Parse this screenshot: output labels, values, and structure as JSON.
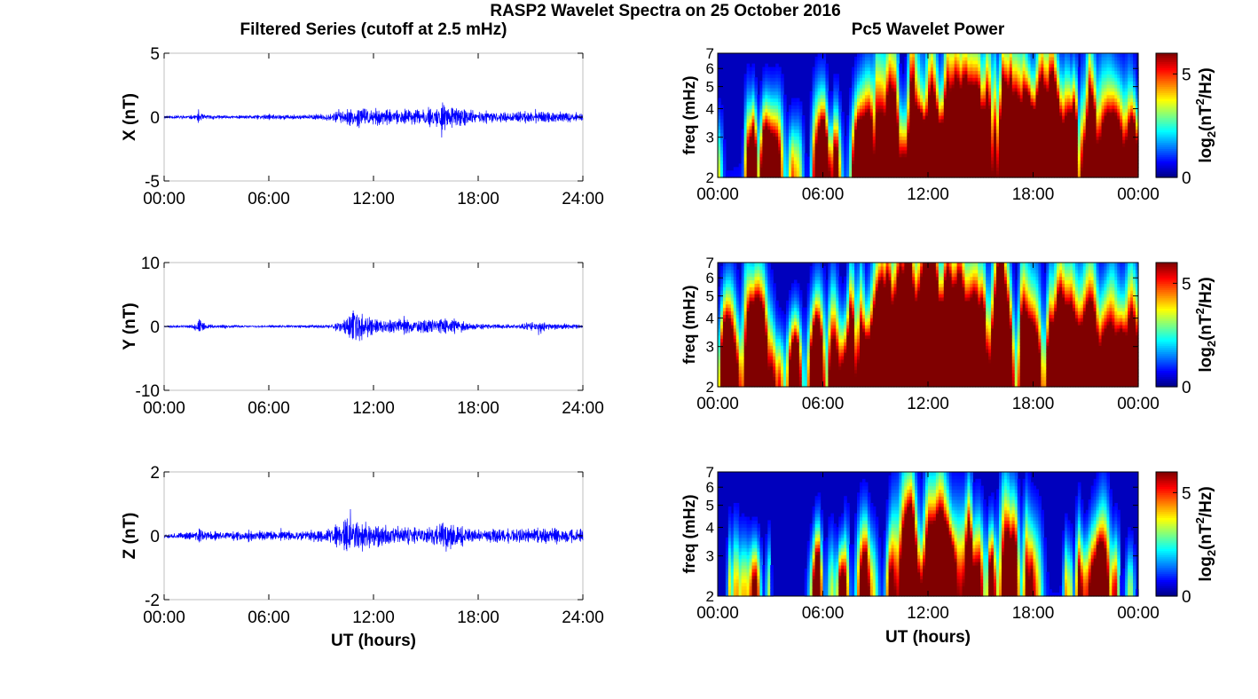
{
  "figure": {
    "suptitle": "RASP2 Wavelet Spectra on 25 October 2016",
    "left_title": "Filtered Series (cutoff at 2.5 mHz)",
    "right_title": "Pc5 Wavelet Power",
    "xlabel": "UT (hours)"
  },
  "colors": {
    "trace": "#0000ff",
    "axis": "#000000",
    "frame": "#bfbfbf",
    "colormap": "jet"
  },
  "chart_data": [
    {
      "type": "line",
      "component": "X",
      "ylabel": "X (nT)",
      "xlim": [
        0,
        24
      ],
      "ylim": [
        -5,
        5
      ],
      "xticks": [
        "00:00",
        "06:00",
        "12:00",
        "18:00",
        "24:00"
      ],
      "yticks": [
        "-5",
        "0",
        "5"
      ],
      "seed": 11,
      "envelope": [
        [
          0,
          0.15
        ],
        [
          1.8,
          0.2
        ],
        [
          2.0,
          0.8
        ],
        [
          2.2,
          0.3
        ],
        [
          4.0,
          0.15
        ],
        [
          6.0,
          0.3
        ],
        [
          8.0,
          0.25
        ],
        [
          9.5,
          0.4
        ],
        [
          10.5,
          0.9
        ],
        [
          11.2,
          1.3
        ],
        [
          12.0,
          0.9
        ],
        [
          13.0,
          0.7
        ],
        [
          14.0,
          0.8
        ],
        [
          15.0,
          1.0
        ],
        [
          16.0,
          1.3
        ],
        [
          17.0,
          1.0
        ],
        [
          18.0,
          0.6
        ],
        [
          20.0,
          0.5
        ],
        [
          22.0,
          0.7
        ],
        [
          23.0,
          0.5
        ],
        [
          24,
          0.4
        ]
      ],
      "series": [
        {
          "values_summary": "filtered X component, amplitude mostly within ±1 nT, peaks ~±2 nT around 11:00 and 16:00"
        }
      ]
    },
    {
      "type": "line",
      "component": "Y",
      "ylabel": "Y (nT)",
      "xlim": [
        0,
        24
      ],
      "ylim": [
        -10,
        10
      ],
      "xticks": [
        "00:00",
        "06:00",
        "12:00",
        "18:00",
        "24:00"
      ],
      "yticks": [
        "-10",
        "0",
        "10"
      ],
      "seed": 23,
      "envelope": [
        [
          0,
          0.2
        ],
        [
          1.5,
          0.3
        ],
        [
          2.0,
          1.5
        ],
        [
          2.4,
          0.5
        ],
        [
          5.0,
          0.2
        ],
        [
          8.0,
          0.25
        ],
        [
          9.5,
          0.6
        ],
        [
          10.5,
          1.8
        ],
        [
          11.0,
          4.5
        ],
        [
          11.4,
          2.5
        ],
        [
          12.0,
          1.5
        ],
        [
          13.0,
          1.7
        ],
        [
          14.5,
          1.4
        ],
        [
          15.5,
          1.6
        ],
        [
          16.0,
          2.5
        ],
        [
          17.0,
          1.2
        ],
        [
          18.0,
          0.6
        ],
        [
          20.0,
          0.5
        ],
        [
          21.5,
          1.2
        ],
        [
          22.5,
          0.6
        ],
        [
          24,
          0.4
        ]
      ],
      "series": [
        {
          "values_summary": "filtered Y component, largest excursion ~+5 nT near 11:00"
        }
      ]
    },
    {
      "type": "line",
      "component": "Z",
      "ylabel": "Z (nT)",
      "xlim": [
        0,
        24
      ],
      "ylim": [
        -2,
        2
      ],
      "xticks": [
        "00:00",
        "06:00",
        "12:00",
        "18:00",
        "24:00"
      ],
      "yticks": [
        "-2",
        "0",
        "2"
      ],
      "seed": 37,
      "envelope": [
        [
          0,
          0.12
        ],
        [
          1.8,
          0.15
        ],
        [
          2.0,
          0.4
        ],
        [
          2.3,
          0.18
        ],
        [
          6.0,
          0.2
        ],
        [
          8.0,
          0.2
        ],
        [
          9.5,
          0.3
        ],
        [
          10.0,
          0.55
        ],
        [
          10.7,
          0.8
        ],
        [
          11.3,
          0.6
        ],
        [
          12.0,
          0.45
        ],
        [
          13.5,
          0.4
        ],
        [
          15.0,
          0.35
        ],
        [
          16.0,
          0.7
        ],
        [
          17.0,
          0.4
        ],
        [
          18.5,
          0.3
        ],
        [
          21.0,
          0.3
        ],
        [
          22.5,
          0.35
        ],
        [
          24,
          0.25
        ]
      ],
      "series": [
        {
          "values_summary": "filtered Z component, peaks ~±0.8 nT near 11:00 and 16:00"
        }
      ]
    },
    {
      "type": "heatmap",
      "component": "X",
      "ylabel": "freq (mHz)",
      "cbar_label": "log2(nT^2/Hz)",
      "xlim": [
        0,
        24
      ],
      "ylim": [
        2,
        7
      ],
      "yscale": "log",
      "clim": [
        0,
        6
      ],
      "xticks": [
        "00:00",
        "06:00",
        "12:00",
        "18:00",
        "00:00"
      ],
      "yticks": [
        "2",
        "3",
        "4",
        "5",
        "6",
        "7"
      ],
      "cbar_ticks": [
        "0",
        "5"
      ],
      "seed": 5,
      "activity": [
        [
          0,
          0.3
        ],
        [
          1.0,
          0.4
        ],
        [
          2.5,
          0.3
        ],
        [
          4.0,
          0.35
        ],
        [
          5.5,
          0.25
        ],
        [
          6.2,
          0.6
        ],
        [
          7.5,
          0.5
        ],
        [
          8.5,
          0.75
        ],
        [
          10.0,
          0.85
        ],
        [
          11.0,
          0.95
        ],
        [
          12.0,
          0.9
        ],
        [
          13.5,
          0.85
        ],
        [
          15.0,
          0.9
        ],
        [
          16.5,
          0.95
        ],
        [
          18.0,
          0.85
        ],
        [
          20.0,
          0.75
        ],
        [
          22.0,
          0.7
        ],
        [
          24,
          0.5
        ]
      ]
    },
    {
      "type": "heatmap",
      "component": "Y",
      "ylabel": "freq (mHz)",
      "cbar_label": "log2(nT^2/Hz)",
      "xlim": [
        0,
        24
      ],
      "ylim": [
        2,
        7
      ],
      "yscale": "log",
      "clim": [
        0,
        6
      ],
      "xticks": [
        "00:00",
        "06:00",
        "12:00",
        "18:00",
        "00:00"
      ],
      "yticks": [
        "2",
        "3",
        "4",
        "5",
        "6",
        "7"
      ],
      "cbar_ticks": [
        "0",
        "5"
      ],
      "seed": 9,
      "activity": [
        [
          0,
          0.4
        ],
        [
          1.5,
          0.8
        ],
        [
          2.5,
          0.6
        ],
        [
          4.0,
          0.4
        ],
        [
          5.5,
          0.45
        ],
        [
          6.5,
          0.6
        ],
        [
          8.0,
          0.65
        ],
        [
          9.5,
          0.8
        ],
        [
          10.5,
          1.0
        ],
        [
          11.5,
          0.95
        ],
        [
          13.0,
          0.95
        ],
        [
          14.5,
          0.9
        ],
        [
          16.0,
          0.95
        ],
        [
          17.5,
          0.8
        ],
        [
          19.0,
          0.7
        ],
        [
          21.0,
          0.75
        ],
        [
          22.5,
          0.85
        ],
        [
          24,
          0.6
        ]
      ]
    },
    {
      "type": "heatmap",
      "component": "Z",
      "ylabel": "freq (mHz)",
      "cbar_label": "log2(nT^2/Hz)",
      "xlim": [
        0,
        24
      ],
      "ylim": [
        2,
        7
      ],
      "yscale": "log",
      "clim": [
        0,
        6
      ],
      "xticks": [
        "00:00",
        "06:00",
        "12:00",
        "18:00",
        "00:00"
      ],
      "yticks": [
        "2",
        "3",
        "4",
        "5",
        "6",
        "7"
      ],
      "cbar_ticks": [
        "0",
        "5"
      ],
      "seed": 17,
      "activity": [
        [
          0,
          0.05
        ],
        [
          1.5,
          0.3
        ],
        [
          2.5,
          0.15
        ],
        [
          5.0,
          0.1
        ],
        [
          6.5,
          0.3
        ],
        [
          8.0,
          0.25
        ],
        [
          9.5,
          0.4
        ],
        [
          10.5,
          0.9
        ],
        [
          11.5,
          0.6
        ],
        [
          12.5,
          0.75
        ],
        [
          13.5,
          0.5
        ],
        [
          15.0,
          0.55
        ],
        [
          16.0,
          0.65
        ],
        [
          17.5,
          0.4
        ],
        [
          19.0,
          0.35
        ],
        [
          21.0,
          0.3
        ],
        [
          22.0,
          0.45
        ],
        [
          23.0,
          0.15
        ],
        [
          24,
          0.05
        ]
      ]
    }
  ]
}
